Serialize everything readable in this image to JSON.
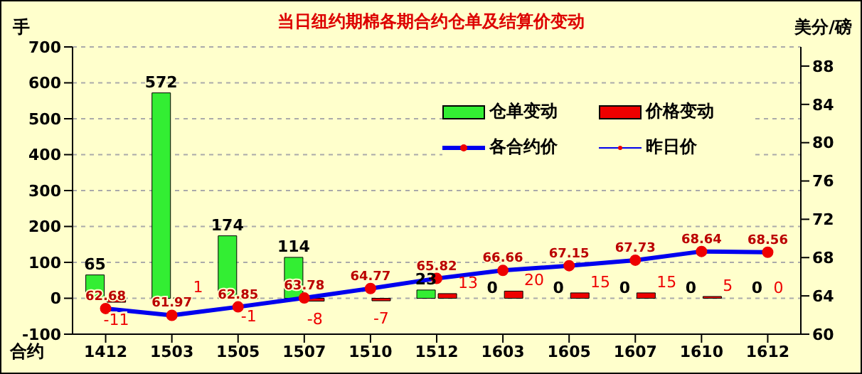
{
  "chart_data": {
    "type": "bar",
    "title": "当日纽约期棉各期合约仓单及结算价变动",
    "xlabel": "合约",
    "ylabel": "手",
    "y2label": "美分/磅",
    "categories": [
      "1412",
      "1503",
      "1505",
      "1507",
      "1510",
      "1512",
      "1603",
      "1605",
      "1607",
      "1610",
      "1612"
    ],
    "series": [
      {
        "name": "仓单变动",
        "color": "#33ee33",
        "values": [
          65,
          572,
          174,
          114,
          0,
          23,
          0,
          0,
          0,
          0,
          0
        ],
        "value_labels": [
          "65",
          "572",
          "174",
          "114",
          null,
          "23",
          "0",
          "0",
          "0",
          "0",
          "0"
        ]
      },
      {
        "name": "价格变动",
        "color": "#ee0000",
        "values": [
          -11,
          1,
          -1,
          -8,
          -7,
          13,
          20,
          15,
          15,
          5,
          0
        ],
        "value_labels": [
          "-11",
          "1",
          "-1",
          "-8",
          "-7",
          "13",
          "20",
          "15",
          "15",
          "5",
          "0"
        ]
      },
      {
        "name": "各合约价",
        "type": "line",
        "axis": "y2",
        "color": "#0000ee",
        "marker": "circle",
        "values": [
          62.68,
          61.97,
          62.85,
          63.78,
          64.77,
          65.82,
          66.66,
          67.15,
          67.73,
          68.64,
          68.56
        ],
        "data_labels": true
      },
      {
        "name": "昨日价",
        "type": "line",
        "axis": "y2",
        "color": "#0000ee",
        "marker": "circle",
        "values": [
          null,
          null,
          null,
          null,
          null,
          null,
          null,
          null,
          null,
          null,
          null
        ]
      }
    ],
    "ylim": [
      -100,
      700
    ],
    "yticks": [
      -100,
      0,
      100,
      200,
      300,
      400,
      500,
      600,
      700
    ],
    "y2lim": [
      60,
      90
    ],
    "y2ticks": [
      60,
      64,
      68,
      72,
      76,
      80,
      84,
      88
    ],
    "grid": "y",
    "legend": "right"
  }
}
